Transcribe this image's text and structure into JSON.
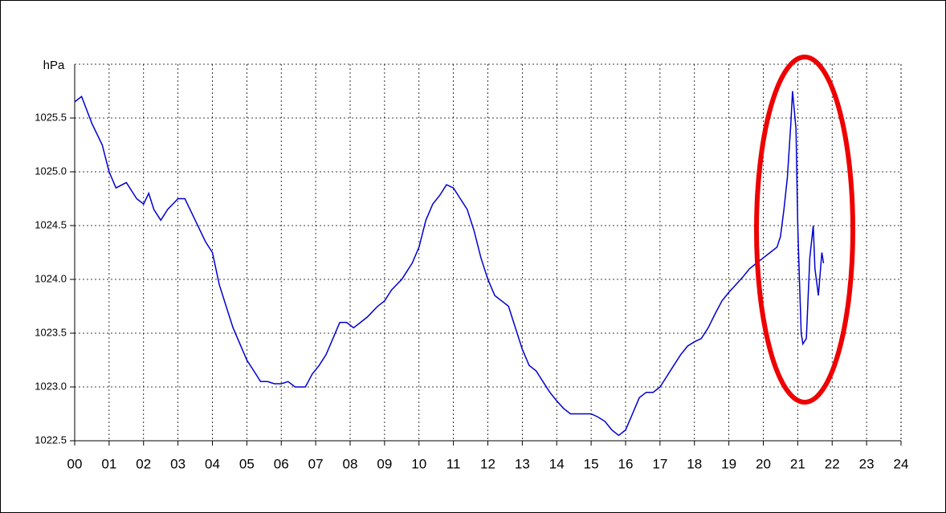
{
  "chart_data": {
    "type": "line",
    "ylabel": "hPa",
    "color": "#0000d0",
    "grid": true,
    "x": [
      0.0,
      0.2,
      0.5,
      0.8,
      1.0,
      1.2,
      1.5,
      1.8,
      2.0,
      2.15,
      2.3,
      2.5,
      2.7,
      3.0,
      3.2,
      3.5,
      3.8,
      4.0,
      4.2,
      4.4,
      4.6,
      4.8,
      5.0,
      5.2,
      5.4,
      5.6,
      5.8,
      6.0,
      6.2,
      6.4,
      6.7,
      6.9,
      7.1,
      7.3,
      7.5,
      7.7,
      7.9,
      8.1,
      8.3,
      8.5,
      8.8,
      9.0,
      9.2,
      9.5,
      9.8,
      10.0,
      10.2,
      10.4,
      10.6,
      10.8,
      11.0,
      11.2,
      11.4,
      11.6,
      11.8,
      12.0,
      12.2,
      12.4,
      12.6,
      12.8,
      13.0,
      13.2,
      13.4,
      13.6,
      13.8,
      14.0,
      14.2,
      14.4,
      14.6,
      14.8,
      15.0,
      15.2,
      15.4,
      15.6,
      15.8,
      16.0,
      16.2,
      16.4,
      16.6,
      16.8,
      17.0,
      17.2,
      17.4,
      17.6,
      17.8,
      18.0,
      18.2,
      18.4,
      18.6,
      18.8,
      19.0,
      19.2,
      19.4,
      19.6,
      19.8,
      20.0,
      20.2,
      20.4,
      20.5,
      20.6,
      20.7,
      20.8,
      20.85,
      20.95,
      21.0,
      21.05,
      21.1,
      21.15,
      21.25,
      21.35,
      21.45,
      21.5,
      21.6,
      21.7,
      21.75
    ],
    "values": [
      1025.65,
      1025.7,
      1025.45,
      1025.25,
      1025.0,
      1024.85,
      1024.9,
      1024.75,
      1024.7,
      1024.8,
      1024.65,
      1024.55,
      1024.65,
      1024.75,
      1024.75,
      1024.55,
      1024.35,
      1024.25,
      1023.95,
      1023.75,
      1023.55,
      1023.4,
      1023.25,
      1023.15,
      1023.05,
      1023.05,
      1023.03,
      1023.03,
      1023.05,
      1023.0,
      1023.0,
      1023.12,
      1023.2,
      1023.3,
      1023.45,
      1023.6,
      1023.6,
      1023.55,
      1023.6,
      1023.65,
      1023.75,
      1023.8,
      1023.9,
      1024.0,
      1024.15,
      1024.3,
      1024.55,
      1024.7,
      1024.78,
      1024.88,
      1024.85,
      1024.75,
      1024.65,
      1024.45,
      1024.2,
      1024.0,
      1023.85,
      1023.8,
      1023.75,
      1023.55,
      1023.35,
      1023.2,
      1023.15,
      1023.05,
      1022.95,
      1022.87,
      1022.8,
      1022.75,
      1022.75,
      1022.75,
      1022.75,
      1022.72,
      1022.68,
      1022.6,
      1022.55,
      1022.6,
      1022.75,
      1022.9,
      1022.95,
      1022.95,
      1023.0,
      1023.1,
      1023.2,
      1023.3,
      1023.38,
      1023.42,
      1023.45,
      1023.55,
      1023.68,
      1023.8,
      1023.88,
      1023.95,
      1024.02,
      1024.1,
      1024.15,
      1024.2,
      1024.25,
      1024.3,
      1024.4,
      1024.65,
      1024.95,
      1025.45,
      1025.75,
      1025.4,
      1024.5,
      1024.0,
      1023.5,
      1023.4,
      1023.45,
      1024.2,
      1024.5,
      1024.1,
      1023.85,
      1024.25,
      1024.15
    ],
    "xlim": [
      0,
      24
    ],
    "xticks": [
      {
        "value": 0,
        "label": "00"
      },
      {
        "value": 1,
        "label": "01"
      },
      {
        "value": 2,
        "label": "02"
      },
      {
        "value": 3,
        "label": "03"
      },
      {
        "value": 4,
        "label": "04"
      },
      {
        "value": 5,
        "label": "05"
      },
      {
        "value": 6,
        "label": "06"
      },
      {
        "value": 7,
        "label": "07"
      },
      {
        "value": 8,
        "label": "08"
      },
      {
        "value": 9,
        "label": "09"
      },
      10,
      11,
      12,
      13,
      14,
      15,
      16,
      17,
      18,
      19,
      20,
      21,
      22,
      23,
      24
    ],
    "ylim": [
      1022.5,
      1026.0
    ],
    "yticks": [
      1022.5,
      {
        "value": 1023,
        "label": "1023.0"
      },
      1023.5,
      {
        "value": 1024,
        "label": "1024.0"
      },
      1024.5,
      {
        "value": 1025,
        "label": "1025.0"
      },
      1025.5
    ]
  }
}
